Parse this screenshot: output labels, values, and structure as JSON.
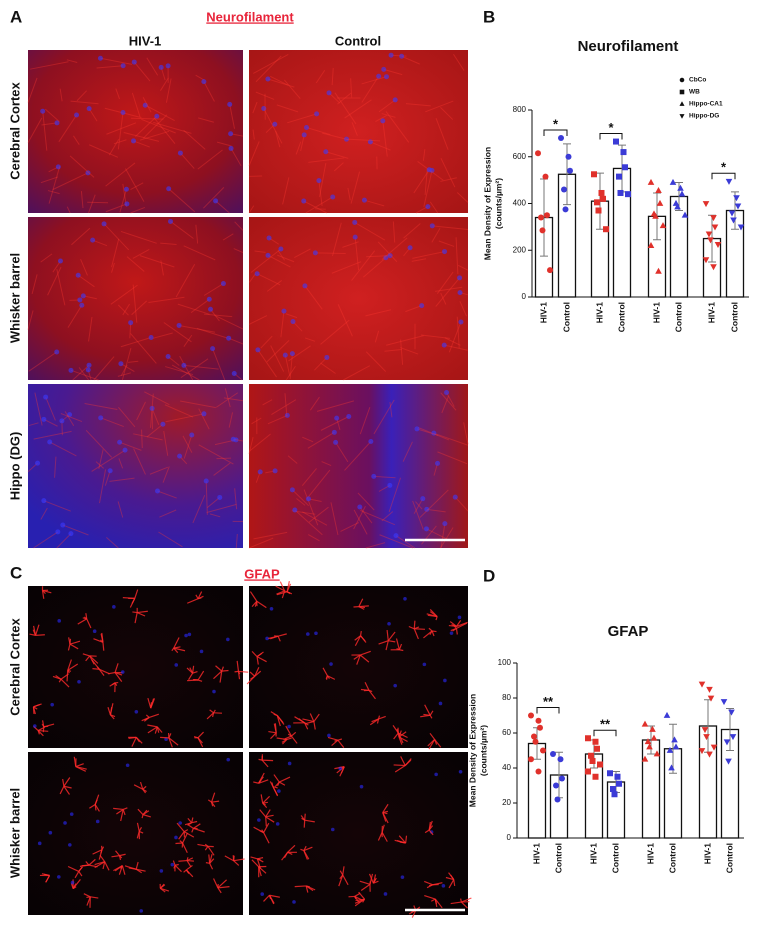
{
  "figure": {
    "panel_labels": [
      "A",
      "B",
      "C",
      "D"
    ],
    "panel_a": {
      "title": "Neurofilament",
      "columns": [
        "HIV-1",
        "Control"
      ],
      "rows": [
        "Cerebral Cortex",
        "Whisker barrel",
        "Hippo (DG)"
      ]
    },
    "panel_c": {
      "title": "GFAP",
      "columns": [
        "HIV-1",
        "Control"
      ],
      "rows": [
        "Cerebral Cortex",
        "Whisker barrel"
      ]
    }
  },
  "chart_data": [
    {
      "type": "bar",
      "title": "Neurofilament",
      "y_label": [
        "Mean Density of Expression",
        "(counts/µm²)"
      ],
      "ylim": [
        0,
        800
      ],
      "yticks": [
        0,
        200,
        400,
        600,
        800
      ],
      "categories": [
        "HIV-1",
        "Control"
      ],
      "colors": [
        "#e0312b",
        "#3b3bd6"
      ],
      "legend": true,
      "legend_position": "top-right",
      "groups": [
        {
          "name": "CbCo",
          "marker": "circle",
          "values": [
            340,
            525
          ],
          "errors": [
            165,
            130
          ],
          "significance": "*",
          "points": [
            [
              615,
              515,
              350,
              340,
              285,
              115
            ],
            [
              680,
              600,
              540,
              460,
              375
            ]
          ]
        },
        {
          "name": "WB",
          "marker": "square",
          "values": [
            410,
            550
          ],
          "errors": [
            120,
            100
          ],
          "significance": "*",
          "points": [
            [
              525,
              445,
              420,
              405,
              370,
              290
            ],
            [
              665,
              620,
              555,
              515,
              445,
              440
            ]
          ]
        },
        {
          "name": "Hippo-CA1",
          "marker": "triangle",
          "values": [
            345,
            430
          ],
          "errors": [
            100,
            60
          ],
          "points": [
            [
              490,
              455,
              400,
              355,
              345,
              305,
              220,
              110
            ],
            [
              490,
              465,
              440,
              400,
              385,
              350
            ]
          ]
        },
        {
          "name": "Hippo-DG",
          "marker": "triangle-down",
          "values": [
            250,
            370
          ],
          "errors": [
            100,
            80
          ],
          "significance": "*",
          "points": [
            [
              400,
              340,
              300,
              270,
              245,
              225,
              160,
              130
            ],
            [
              495,
              425,
              390,
              360,
              330,
              300
            ]
          ]
        }
      ]
    },
    {
      "type": "bar",
      "title": "GFAP",
      "y_label": [
        "Mean Density of Expression",
        "(counts/µm²)"
      ],
      "ylim": [
        0,
        100
      ],
      "yticks": [
        0,
        20,
        40,
        60,
        80,
        100
      ],
      "categories": [
        "HIV-1",
        "Control"
      ],
      "colors": [
        "#e0312b",
        "#3b3bd6"
      ],
      "legend": false,
      "groups": [
        {
          "name": "CbCo",
          "marker": "circle",
          "values": [
            54,
            36
          ],
          "errors": [
            9,
            13
          ],
          "significance": "**",
          "points": [
            [
              70,
              67,
              63,
              58,
              55,
              50,
              45,
              38
            ],
            [
              48,
              45,
              34,
              30,
              22
            ]
          ]
        },
        {
          "name": "WB",
          "marker": "square",
          "values": [
            48,
            32
          ],
          "errors": [
            8,
            6
          ],
          "significance": "**",
          "points": [
            [
              57,
              55,
              51,
              47,
              44,
              42,
              38,
              35
            ],
            [
              37,
              35,
              31,
              28,
              25
            ]
          ]
        },
        {
          "name": "Hippo-CA1",
          "marker": "triangle",
          "values": [
            56,
            51
          ],
          "errors": [
            8,
            14
          ],
          "points": [
            [
              65,
              62,
              57,
              55,
              52,
              48,
              45
            ],
            [
              70,
              56,
              52,
              50,
              40
            ]
          ]
        },
        {
          "name": "Hippo-DG",
          "marker": "triangle-down",
          "values": [
            64,
            62
          ],
          "errors": [
            15,
            12
          ],
          "points": [
            [
              88,
              85,
              80,
              62,
              58,
              52,
              50,
              48
            ],
            [
              78,
              72,
              58,
              55,
              44
            ]
          ]
        }
      ]
    }
  ]
}
